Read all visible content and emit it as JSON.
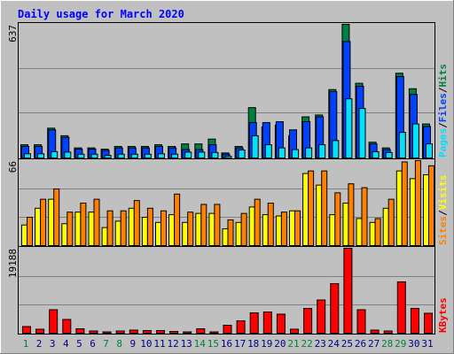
{
  "title": "Daily usage for March 2020",
  "colors": {
    "background": "#C0C0C0",
    "title": "#0000FF",
    "hits": "#008040",
    "files": "#0040FF",
    "pages": "#00E0FF",
    "visits": "#FF8000",
    "sites": "#FFFF00",
    "kbytes": "#FF0000",
    "weekday_label": "#000080",
    "weekend_label": "#008040"
  },
  "chart_data": [
    {
      "type": "bar",
      "categories": [
        "1",
        "2",
        "3",
        "4",
        "5",
        "6",
        "7",
        "8",
        "9",
        "10",
        "11",
        "12",
        "13",
        "14",
        "15",
        "16",
        "17",
        "18",
        "19",
        "20",
        "21",
        "22",
        "23",
        "24",
        "25",
        "26",
        "27",
        "28",
        "29",
        "30",
        "31"
      ],
      "weekend_days": [
        1,
        7,
        8,
        14,
        15,
        21,
        22,
        28,
        29
      ],
      "ymax_label": "637",
      "ylim": [
        0,
        637
      ],
      "legend": [
        "Pages",
        "Files",
        "Hits"
      ],
      "series": [
        {
          "name": "Hits",
          "values": [
            63,
            63,
            142,
            106,
            48,
            48,
            42,
            55,
            55,
            55,
            63,
            55,
            67,
            67,
            90,
            24,
            55,
            240,
            148,
            157,
            106,
            196,
            205,
            326,
            637,
            356,
            75,
            48,
            404,
            330,
            162
          ]
        },
        {
          "name": "Files",
          "values": [
            55,
            55,
            134,
            98,
            42,
            42,
            36,
            48,
            48,
            48,
            55,
            48,
            40,
            40,
            63,
            18,
            48,
            169,
            169,
            173,
            134,
            173,
            196,
            316,
            555,
            342,
            67,
            40,
            388,
            303,
            150
          ]
        },
        {
          "name": "Pages",
          "values": [
            20,
            20,
            30,
            28,
            18,
            18,
            12,
            18,
            18,
            18,
            20,
            18,
            28,
            28,
            26,
            8,
            38,
            106,
            63,
            48,
            40,
            48,
            63,
            83,
            282,
            236,
            30,
            26,
            122,
            162,
            67
          ]
        }
      ]
    },
    {
      "type": "bar",
      "categories": [
        "1",
        "2",
        "3",
        "4",
        "5",
        "6",
        "7",
        "8",
        "9",
        "10",
        "11",
        "12",
        "13",
        "14",
        "15",
        "16",
        "17",
        "18",
        "19",
        "20",
        "21",
        "22",
        "23",
        "24",
        "25",
        "26",
        "27",
        "28",
        "29",
        "30",
        "31"
      ],
      "ymax_label": "66",
      "ylim": [
        0,
        66
      ],
      "legend": [
        "Sites",
        "Visits"
      ],
      "series": [
        {
          "name": "Visits",
          "values": [
            22,
            36,
            44,
            26,
            33,
            36,
            27,
            27,
            35,
            29,
            27,
            40,
            26,
            32,
            32,
            20,
            25,
            36,
            33,
            26,
            27,
            58,
            58,
            41,
            48,
            45,
            21,
            36,
            65,
            66,
            62
          ]
        },
        {
          "name": "Sites",
          "values": [
            16,
            29,
            36,
            17,
            26,
            26,
            14,
            19,
            29,
            22,
            18,
            24,
            18,
            25,
            25,
            13,
            18,
            30,
            24,
            23,
            27,
            56,
            47,
            24,
            33,
            21,
            18,
            29,
            58,
            52,
            55
          ]
        }
      ]
    },
    {
      "type": "bar",
      "categories": [
        "1",
        "2",
        "3",
        "4",
        "5",
        "6",
        "7",
        "8",
        "9",
        "10",
        "11",
        "12",
        "13",
        "14",
        "15",
        "16",
        "17",
        "18",
        "19",
        "20",
        "21",
        "22",
        "23",
        "24",
        "25",
        "26",
        "27",
        "28",
        "29",
        "30",
        "31"
      ],
      "ymax_label": "19188",
      "ylim": [
        0,
        19188
      ],
      "legend": [
        "KBytes"
      ],
      "series": [
        {
          "name": "KBytes",
          "values": [
            1500,
            900,
            5300,
            3100,
            1000,
            500,
            300,
            500,
            700,
            600,
            600,
            400,
            300,
            1000,
            300,
            1800,
            2800,
            4600,
            4800,
            4300,
            900,
            5600,
            7500,
            11200,
            19188,
            5300,
            700,
            500,
            11600,
            5600,
            4500
          ]
        }
      ]
    }
  ]
}
